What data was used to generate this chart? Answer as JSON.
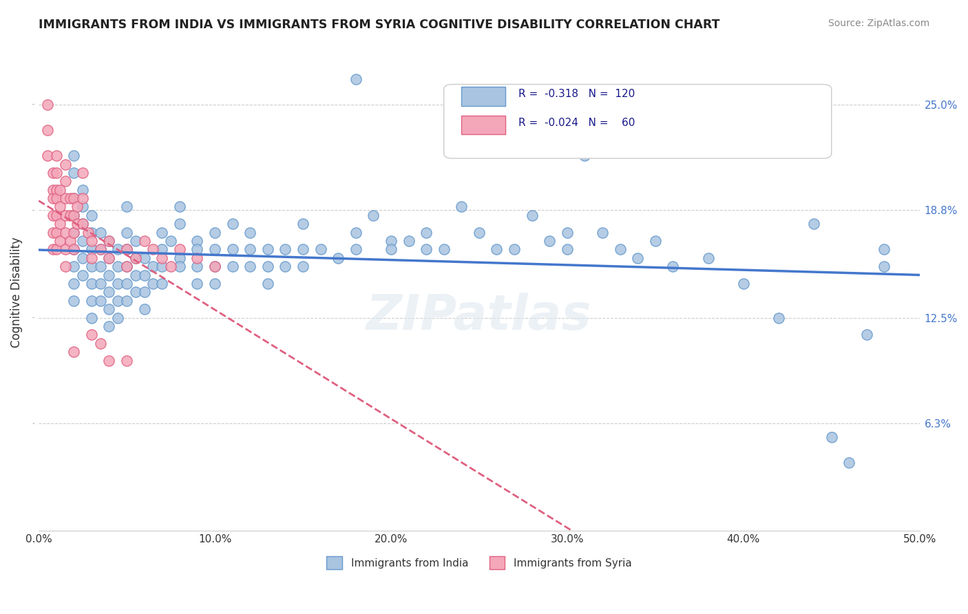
{
  "title": "IMMIGRANTS FROM INDIA VS IMMIGRANTS FROM SYRIA COGNITIVE DISABILITY CORRELATION CHART",
  "source": "Source: ZipAtlas.com",
  "xlabel": "",
  "ylabel": "Cognitive Disability",
  "xlim": [
    0.0,
    0.5
  ],
  "ylim": [
    0.0,
    0.28
  ],
  "yticks": [
    0.0,
    0.063,
    0.125,
    0.188,
    0.25
  ],
  "ytick_labels": [
    "",
    "6.3%",
    "12.5%",
    "18.8%",
    "25.0%"
  ],
  "xticks": [
    0.0,
    0.1,
    0.2,
    0.3,
    0.4,
    0.5
  ],
  "xtick_labels": [
    "0.0%",
    "10.0%",
    "20.0%",
    "30.0%",
    "40.0%",
    "50.0%"
  ],
  "india_color": "#a8c4e0",
  "india_color_dark": "#6699cc",
  "syria_color": "#f4a7b9",
  "syria_color_dark": "#e06080",
  "trend_india_color": "#4477cc",
  "trend_syria_color": "#e06080",
  "india_R": -0.318,
  "india_N": 120,
  "syria_R": -0.024,
  "syria_N": 60,
  "legend_label_india": "Immigrants from India",
  "legend_label_syria": "Immigrants from Syria",
  "watermark": "ZIPatlas",
  "india_points": [
    [
      0.02,
      0.22
    ],
    [
      0.02,
      0.21
    ],
    [
      0.02,
      0.195
    ],
    [
      0.02,
      0.185
    ],
    [
      0.02,
      0.175
    ],
    [
      0.02,
      0.165
    ],
    [
      0.02,
      0.155
    ],
    [
      0.02,
      0.145
    ],
    [
      0.02,
      0.135
    ],
    [
      0.025,
      0.2
    ],
    [
      0.025,
      0.19
    ],
    [
      0.025,
      0.18
    ],
    [
      0.025,
      0.17
    ],
    [
      0.025,
      0.16
    ],
    [
      0.025,
      0.15
    ],
    [
      0.03,
      0.185
    ],
    [
      0.03,
      0.175
    ],
    [
      0.03,
      0.165
    ],
    [
      0.03,
      0.155
    ],
    [
      0.03,
      0.145
    ],
    [
      0.03,
      0.135
    ],
    [
      0.03,
      0.125
    ],
    [
      0.035,
      0.175
    ],
    [
      0.035,
      0.165
    ],
    [
      0.035,
      0.155
    ],
    [
      0.035,
      0.145
    ],
    [
      0.035,
      0.135
    ],
    [
      0.04,
      0.17
    ],
    [
      0.04,
      0.16
    ],
    [
      0.04,
      0.15
    ],
    [
      0.04,
      0.14
    ],
    [
      0.04,
      0.13
    ],
    [
      0.04,
      0.12
    ],
    [
      0.045,
      0.165
    ],
    [
      0.045,
      0.155
    ],
    [
      0.045,
      0.145
    ],
    [
      0.045,
      0.135
    ],
    [
      0.045,
      0.125
    ],
    [
      0.05,
      0.19
    ],
    [
      0.05,
      0.175
    ],
    [
      0.05,
      0.165
    ],
    [
      0.05,
      0.155
    ],
    [
      0.05,
      0.145
    ],
    [
      0.05,
      0.135
    ],
    [
      0.055,
      0.17
    ],
    [
      0.055,
      0.16
    ],
    [
      0.055,
      0.15
    ],
    [
      0.055,
      0.14
    ],
    [
      0.06,
      0.16
    ],
    [
      0.06,
      0.15
    ],
    [
      0.06,
      0.14
    ],
    [
      0.06,
      0.13
    ],
    [
      0.065,
      0.155
    ],
    [
      0.065,
      0.145
    ],
    [
      0.07,
      0.175
    ],
    [
      0.07,
      0.165
    ],
    [
      0.07,
      0.155
    ],
    [
      0.07,
      0.145
    ],
    [
      0.075,
      0.17
    ],
    [
      0.08,
      0.19
    ],
    [
      0.08,
      0.18
    ],
    [
      0.08,
      0.16
    ],
    [
      0.08,
      0.155
    ],
    [
      0.09,
      0.17
    ],
    [
      0.09,
      0.165
    ],
    [
      0.09,
      0.155
    ],
    [
      0.09,
      0.145
    ],
    [
      0.1,
      0.175
    ],
    [
      0.1,
      0.165
    ],
    [
      0.1,
      0.155
    ],
    [
      0.1,
      0.145
    ],
    [
      0.11,
      0.18
    ],
    [
      0.11,
      0.165
    ],
    [
      0.11,
      0.155
    ],
    [
      0.12,
      0.175
    ],
    [
      0.12,
      0.165
    ],
    [
      0.12,
      0.155
    ],
    [
      0.13,
      0.165
    ],
    [
      0.13,
      0.155
    ],
    [
      0.13,
      0.145
    ],
    [
      0.14,
      0.165
    ],
    [
      0.14,
      0.155
    ],
    [
      0.15,
      0.18
    ],
    [
      0.15,
      0.165
    ],
    [
      0.15,
      0.155
    ],
    [
      0.16,
      0.165
    ],
    [
      0.17,
      0.16
    ],
    [
      0.18,
      0.265
    ],
    [
      0.18,
      0.175
    ],
    [
      0.18,
      0.165
    ],
    [
      0.19,
      0.185
    ],
    [
      0.2,
      0.17
    ],
    [
      0.2,
      0.165
    ],
    [
      0.21,
      0.17
    ],
    [
      0.22,
      0.175
    ],
    [
      0.22,
      0.165
    ],
    [
      0.23,
      0.165
    ],
    [
      0.24,
      0.19
    ],
    [
      0.25,
      0.175
    ],
    [
      0.26,
      0.165
    ],
    [
      0.27,
      0.165
    ],
    [
      0.28,
      0.185
    ],
    [
      0.29,
      0.17
    ],
    [
      0.3,
      0.175
    ],
    [
      0.3,
      0.165
    ],
    [
      0.31,
      0.22
    ],
    [
      0.32,
      0.175
    ],
    [
      0.33,
      0.165
    ],
    [
      0.34,
      0.16
    ],
    [
      0.35,
      0.17
    ],
    [
      0.36,
      0.155
    ],
    [
      0.38,
      0.16
    ],
    [
      0.4,
      0.145
    ],
    [
      0.42,
      0.125
    ],
    [
      0.44,
      0.18
    ],
    [
      0.45,
      0.055
    ],
    [
      0.46,
      0.04
    ],
    [
      0.47,
      0.115
    ],
    [
      0.48,
      0.165
    ],
    [
      0.48,
      0.155
    ]
  ],
  "syria_points": [
    [
      0.005,
      0.25
    ],
    [
      0.005,
      0.235
    ],
    [
      0.005,
      0.22
    ],
    [
      0.008,
      0.21
    ],
    [
      0.008,
      0.2
    ],
    [
      0.008,
      0.195
    ],
    [
      0.008,
      0.185
    ],
    [
      0.008,
      0.175
    ],
    [
      0.008,
      0.165
    ],
    [
      0.01,
      0.22
    ],
    [
      0.01,
      0.21
    ],
    [
      0.01,
      0.2
    ],
    [
      0.01,
      0.195
    ],
    [
      0.01,
      0.185
    ],
    [
      0.01,
      0.175
    ],
    [
      0.01,
      0.165
    ],
    [
      0.012,
      0.2
    ],
    [
      0.012,
      0.19
    ],
    [
      0.012,
      0.18
    ],
    [
      0.012,
      0.17
    ],
    [
      0.015,
      0.215
    ],
    [
      0.015,
      0.205
    ],
    [
      0.015,
      0.195
    ],
    [
      0.015,
      0.185
    ],
    [
      0.015,
      0.175
    ],
    [
      0.015,
      0.165
    ],
    [
      0.015,
      0.155
    ],
    [
      0.018,
      0.195
    ],
    [
      0.018,
      0.185
    ],
    [
      0.018,
      0.17
    ],
    [
      0.02,
      0.195
    ],
    [
      0.02,
      0.185
    ],
    [
      0.02,
      0.175
    ],
    [
      0.02,
      0.165
    ],
    [
      0.022,
      0.19
    ],
    [
      0.022,
      0.18
    ],
    [
      0.025,
      0.21
    ],
    [
      0.025,
      0.195
    ],
    [
      0.025,
      0.18
    ],
    [
      0.028,
      0.175
    ],
    [
      0.03,
      0.17
    ],
    [
      0.03,
      0.16
    ],
    [
      0.035,
      0.165
    ],
    [
      0.04,
      0.17
    ],
    [
      0.04,
      0.16
    ],
    [
      0.05,
      0.165
    ],
    [
      0.05,
      0.155
    ],
    [
      0.055,
      0.16
    ],
    [
      0.06,
      0.17
    ],
    [
      0.065,
      0.165
    ],
    [
      0.07,
      0.16
    ],
    [
      0.075,
      0.155
    ],
    [
      0.08,
      0.165
    ],
    [
      0.09,
      0.16
    ],
    [
      0.1,
      0.155
    ],
    [
      0.02,
      0.105
    ],
    [
      0.03,
      0.115
    ],
    [
      0.035,
      0.11
    ],
    [
      0.04,
      0.1
    ],
    [
      0.05,
      0.1
    ]
  ]
}
